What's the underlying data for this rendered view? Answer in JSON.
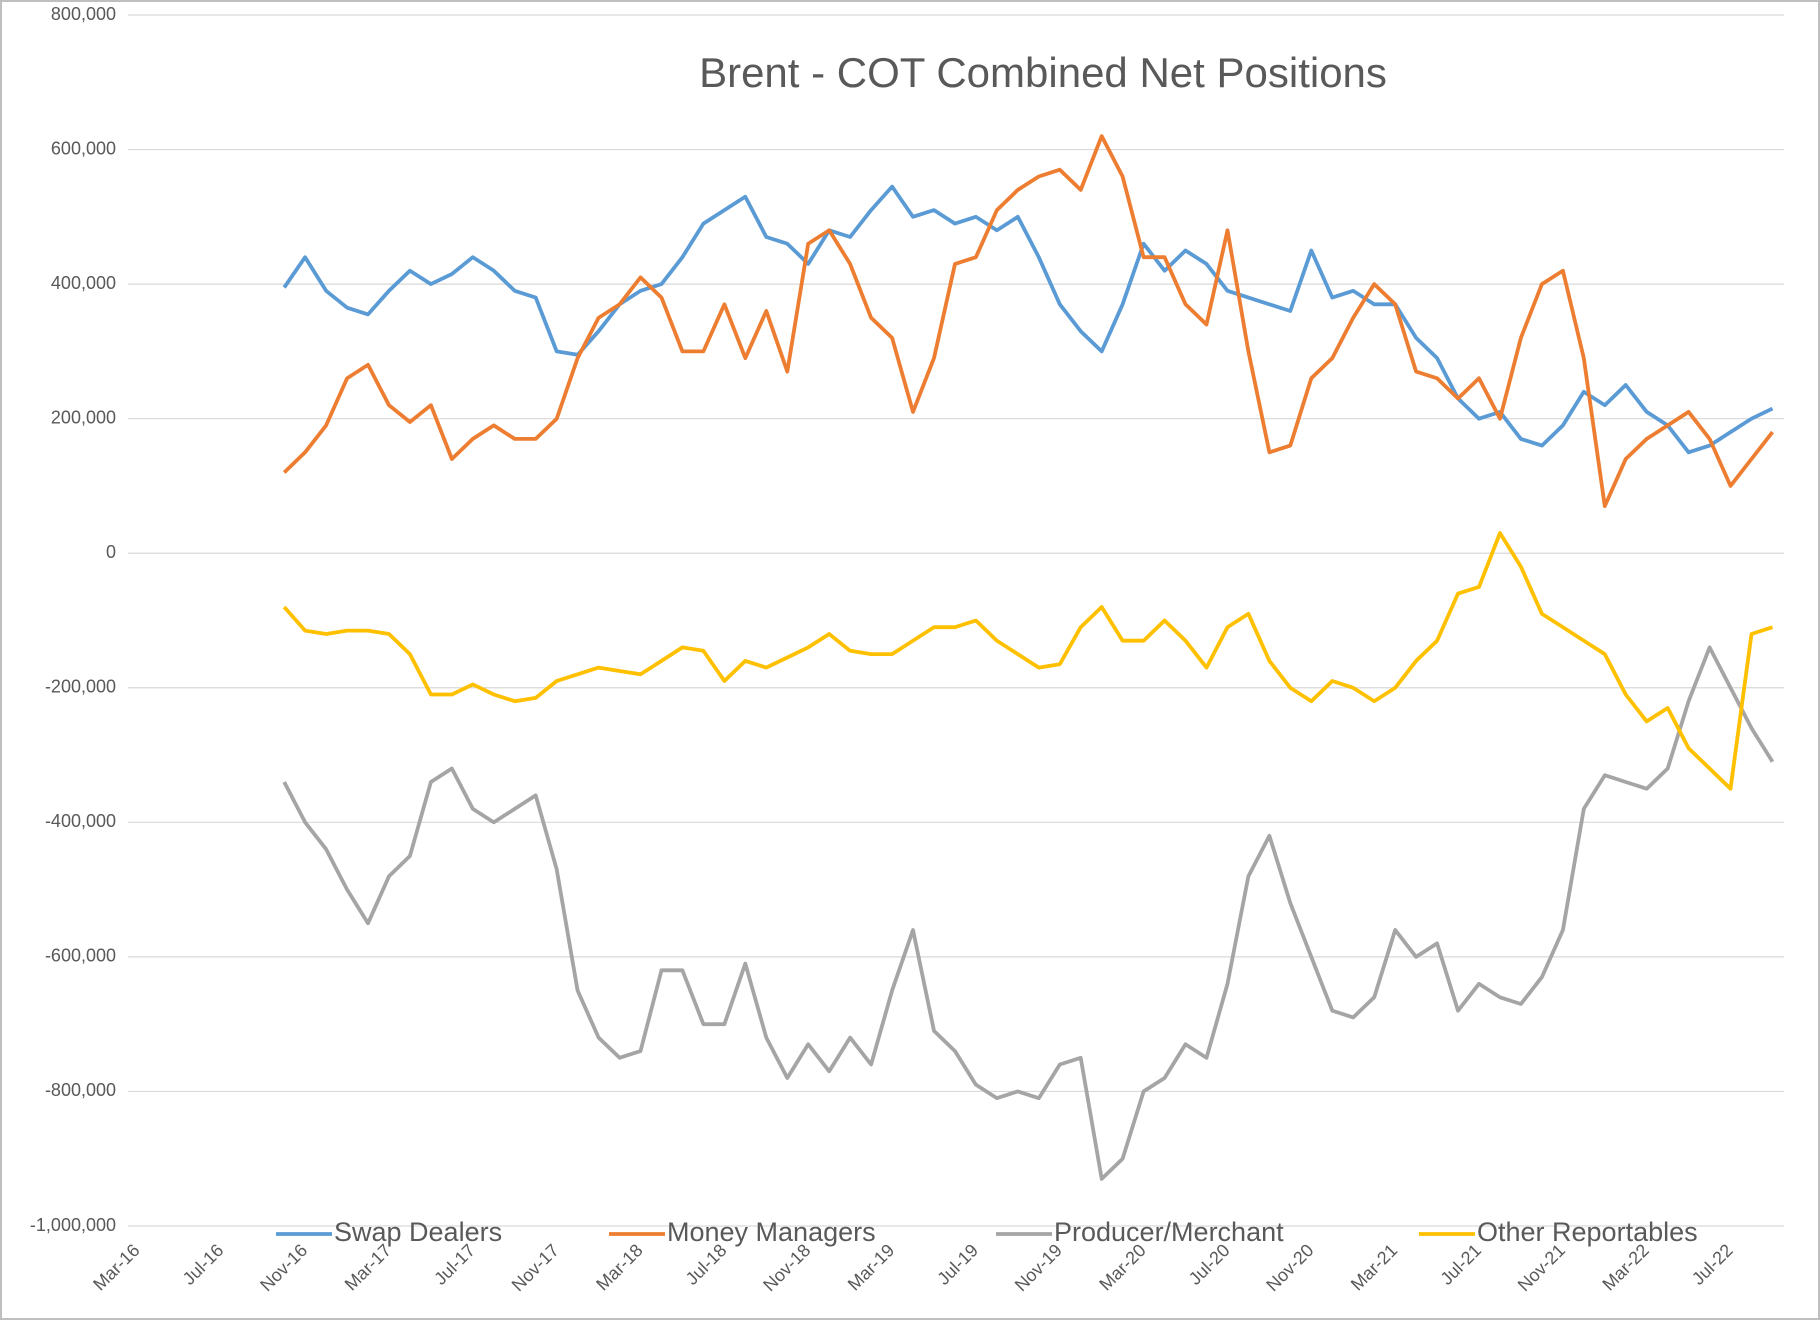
{
  "chart_data": {
    "type": "line",
    "title": "Brent - COT Combined Net Positions",
    "categories": [
      "Mar-16",
      null,
      null,
      null,
      "Jul-16",
      null,
      null,
      null,
      "Nov-16",
      null,
      null,
      null,
      "Mar-17",
      null,
      null,
      null,
      "Jul-17",
      null,
      null,
      null,
      "Nov-17",
      null,
      null,
      null,
      "Mar-18",
      null,
      null,
      null,
      "Jul-18",
      null,
      null,
      null,
      "Nov-18",
      null,
      null,
      null,
      "Mar-19",
      null,
      null,
      null,
      "Jul-19",
      null,
      null,
      null,
      "Nov-19",
      null,
      null,
      null,
      "Mar-20",
      null,
      null,
      null,
      "Jul-20",
      null,
      null,
      null,
      "Nov-20",
      null,
      null,
      null,
      "Mar-21",
      null,
      null,
      null,
      "Jul-21",
      null,
      null,
      null,
      "Nov-21",
      null,
      null,
      null,
      "Mar-22",
      null,
      null,
      null,
      "Jul-22",
      null,
      null
    ],
    "series": [
      {
        "name": "Swap Dealers",
        "color": "#5b9bd5",
        "values": [
          null,
          null,
          null,
          null,
          null,
          null,
          null,
          395000,
          440000,
          390000,
          365000,
          355000,
          390000,
          420000,
          400000,
          415000,
          440000,
          420000,
          390000,
          380000,
          300000,
          295000,
          330000,
          370000,
          390000,
          400000,
          440000,
          490000,
          510000,
          530000,
          470000,
          460000,
          430000,
          480000,
          470000,
          510000,
          545000,
          500000,
          510000,
          490000,
          500000,
          480000,
          500000,
          440000,
          370000,
          330000,
          300000,
          370000,
          460000,
          420000,
          450000,
          430000,
          390000,
          380000,
          370000,
          360000,
          450000,
          380000,
          390000,
          370000,
          370000,
          320000,
          290000,
          230000,
          200000,
          210000,
          170000,
          160000,
          190000,
          240000,
          220000,
          250000,
          210000,
          190000,
          150000,
          160000,
          180000,
          200000,
          215000
        ]
      },
      {
        "name": "Money Managers",
        "color": "#ed7d31",
        "values": [
          null,
          null,
          null,
          null,
          null,
          null,
          null,
          120000,
          150000,
          190000,
          260000,
          280000,
          220000,
          195000,
          220000,
          140000,
          170000,
          190000,
          170000,
          170000,
          200000,
          290000,
          350000,
          370000,
          410000,
          380000,
          300000,
          300000,
          370000,
          290000,
          360000,
          270000,
          460000,
          480000,
          430000,
          350000,
          320000,
          210000,
          290000,
          430000,
          440000,
          510000,
          540000,
          560000,
          570000,
          540000,
          620000,
          560000,
          440000,
          440000,
          370000,
          340000,
          480000,
          300000,
          150000,
          160000,
          260000,
          290000,
          350000,
          400000,
          370000,
          270000,
          260000,
          230000,
          260000,
          200000,
          320000,
          400000,
          420000,
          290000,
          70000,
          140000,
          170000,
          190000,
          210000,
          170000,
          100000,
          140000,
          180000
        ]
      },
      {
        "name": "Producer/Merchant",
        "color": "#a5a5a5",
        "values": [
          null,
          null,
          null,
          null,
          null,
          null,
          null,
          -340000,
          -400000,
          -440000,
          -500000,
          -550000,
          -480000,
          -450000,
          -340000,
          -320000,
          -380000,
          -400000,
          -380000,
          -360000,
          -470000,
          -650000,
          -720000,
          -750000,
          -740000,
          -620000,
          -620000,
          -700000,
          -700000,
          -610000,
          -720000,
          -780000,
          -730000,
          -770000,
          -720000,
          -760000,
          -650000,
          -560000,
          -710000,
          -740000,
          -790000,
          -810000,
          -800000,
          -810000,
          -760000,
          -750000,
          -930000,
          -900000,
          -800000,
          -780000,
          -730000,
          -750000,
          -640000,
          -480000,
          -420000,
          -520000,
          -600000,
          -680000,
          -690000,
          -660000,
          -560000,
          -600000,
          -580000,
          -680000,
          -640000,
          -660000,
          -670000,
          -630000,
          -560000,
          -380000,
          -330000,
          -340000,
          -350000,
          -320000,
          -220000,
          -140000,
          -200000,
          -260000,
          -310000
        ]
      },
      {
        "name": "Other Reportables",
        "color": "#ffc000",
        "values": [
          null,
          null,
          null,
          null,
          null,
          null,
          null,
          -80000,
          -115000,
          -120000,
          -115000,
          -115000,
          -120000,
          -150000,
          -210000,
          -210000,
          -195000,
          -210000,
          -220000,
          -215000,
          -190000,
          -180000,
          -170000,
          -175000,
          -180000,
          -160000,
          -140000,
          -145000,
          -190000,
          -160000,
          -170000,
          -155000,
          -140000,
          -120000,
          -145000,
          -150000,
          -150000,
          -130000,
          -110000,
          -110000,
          -100000,
          -130000,
          -150000,
          -170000,
          -165000,
          -110000,
          -80000,
          -130000,
          -130000,
          -100000,
          -130000,
          -170000,
          -110000,
          -90000,
          -160000,
          -200000,
          -220000,
          -190000,
          -200000,
          -220000,
          -200000,
          -160000,
          -130000,
          -60000,
          -50000,
          30000,
          -20000,
          -90000,
          -110000,
          -130000,
          -150000,
          -210000,
          -250000,
          -230000,
          -290000,
          -320000,
          -350000,
          -120000,
          -110000
        ]
      }
    ],
    "ylim": [
      -1000000,
      800000
    ],
    "yticks": [
      {
        "value": -1000000,
        "label": "-1,000,000"
      },
      {
        "value": -800000,
        "label": "-800,000"
      },
      {
        "value": -600000,
        "label": "-600,000"
      },
      {
        "value": -400000,
        "label": "-400,000"
      },
      {
        "value": -200000,
        "label": "-200,000"
      },
      0,
      {
        "value": 200000,
        "label": "200,000"
      },
      {
        "value": 400000,
        "label": "400,000"
      },
      {
        "value": 600000,
        "label": "600,000"
      },
      {
        "value": 800000,
        "label": "800,000"
      }
    ],
    "grid": true,
    "legend": "bottom"
  }
}
